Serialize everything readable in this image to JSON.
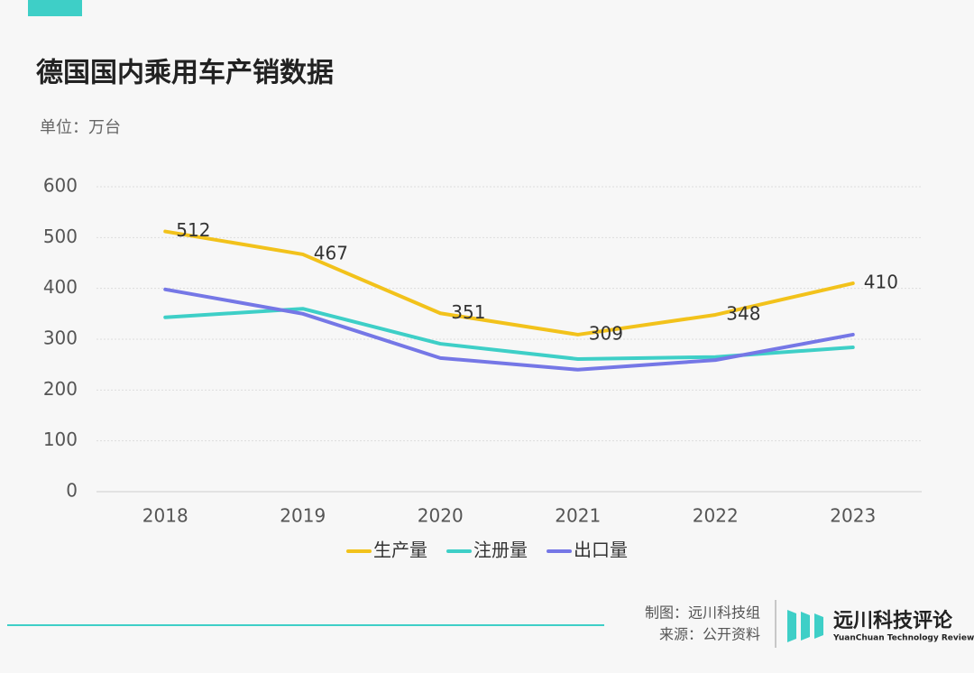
{
  "chart_data": {
    "type": "line",
    "title": "德国国内乘用车产销数据",
    "subtitle": "单位：万台",
    "categories": [
      "2018",
      "2019",
      "2020",
      "2021",
      "2022",
      "2023"
    ],
    "series": [
      {
        "name": "生产量",
        "color": "#f2c21b",
        "values": [
          512,
          467,
          351,
          309,
          348,
          410
        ],
        "show_labels": true
      },
      {
        "name": "注册量",
        "color": "#3ecfc7",
        "values": [
          343,
          360,
          291,
          261,
          265,
          284
        ]
      },
      {
        "name": "出口量",
        "color": "#7577e6",
        "values": [
          398,
          350,
          263,
          240,
          259,
          309
        ]
      }
    ],
    "ylim": [
      0,
      600
    ],
    "yticks": [
      0,
      100,
      200,
      300,
      400,
      500,
      600
    ],
    "grid": true,
    "legend": "bottom"
  },
  "footer": {
    "credit": "制图：远川科技组",
    "source": "来源：公开资料",
    "brand": "远川科技评论",
    "brand_en": "YuanChuan Technology Review"
  }
}
